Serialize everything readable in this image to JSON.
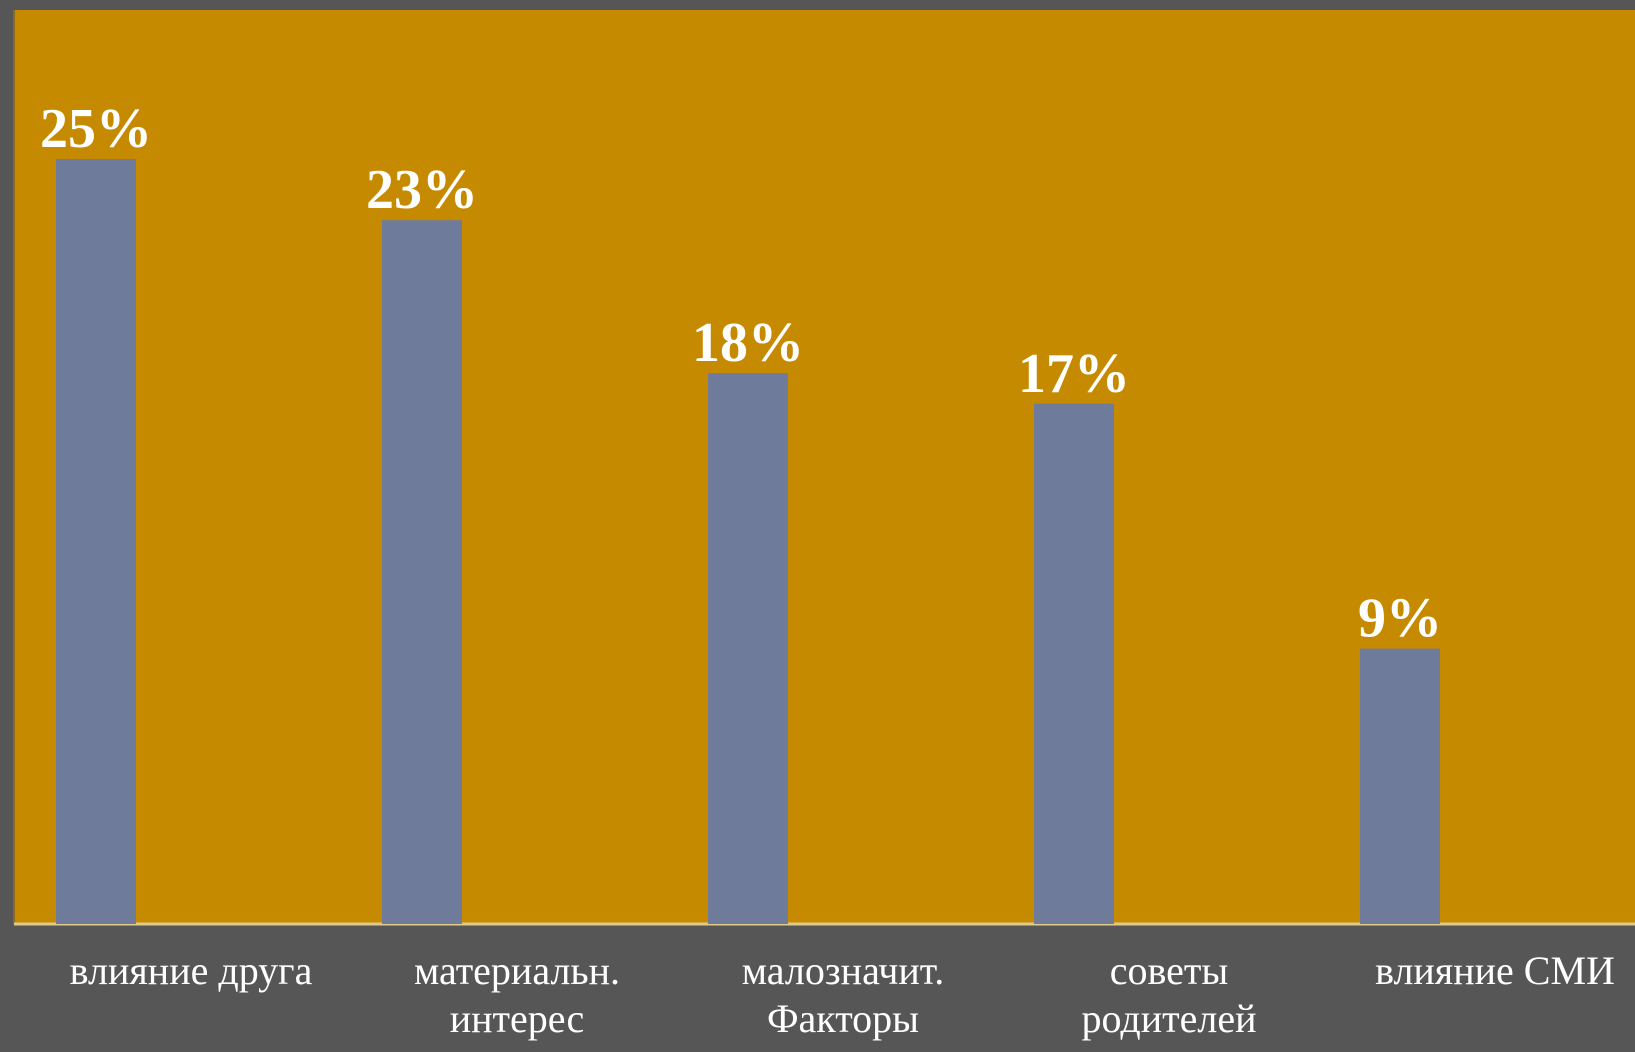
{
  "chart_data": {
    "type": "bar",
    "categories": [
      [
        "влияние друга"
      ],
      [
        "материальн.",
        "интерес"
      ],
      [
        "малозначит.",
        "Факторы"
      ],
      [
        "советы",
        "родителей"
      ],
      [
        "влияние СМИ"
      ]
    ],
    "values": [
      25,
      23,
      18,
      17,
      9
    ],
    "data_labels": [
      "25%",
      "23%",
      "18%",
      "17%",
      "9%"
    ],
    "ylim": [
      0,
      30
    ],
    "grid": false,
    "legend": "none",
    "colors": {
      "background": "#565656",
      "plot_area": "#c68a00",
      "bar": "#6e7b9a",
      "label_text": "#ffffff",
      "axis_line": "#e0c98a"
    }
  }
}
